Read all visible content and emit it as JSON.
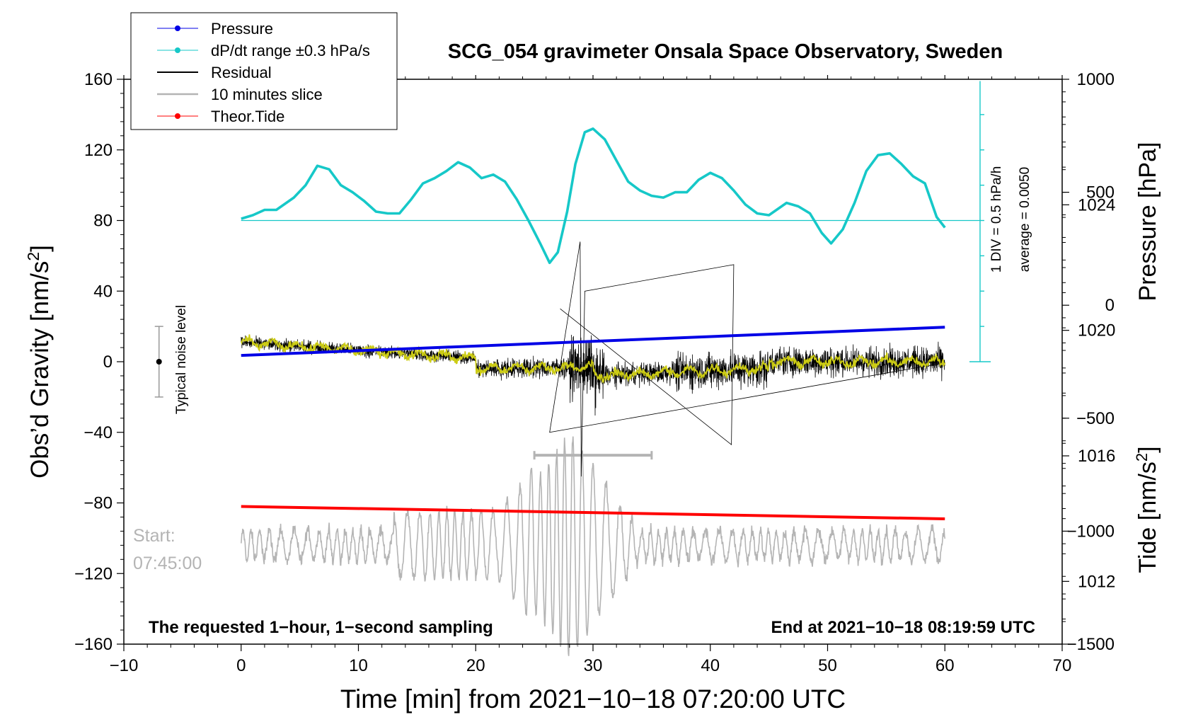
{
  "chart_data": {
    "type": "line",
    "title": "SCG_054 gravimeter Onsala Space Observatory, Sweden",
    "xlabel": "Time [min] from 2021−10−18 07:20:00 UTC",
    "ylabel_left": "Obs’d Gravity [nm/s²]",
    "ylabel_left_main": "Obs’d Gravity [nm/s",
    "ylabel_left_sup": "2",
    "ylabel_left_end": "]",
    "ylabel_right_pressure": "Pressure [hPa]",
    "ylabel_right_tide": "Tide [nm/s²]",
    "ylabel_right_tide_main": "Tide [nm/s",
    "ylabel_right_tide_sup": "2",
    "ylabel_right_tide_end": "]",
    "xlim": [
      -10,
      70
    ],
    "ylim": [
      -160,
      160
    ],
    "pressure_axis": {
      "range": [
        1010,
        1028
      ],
      "ticks": [
        1012,
        1016,
        1020,
        1024
      ],
      "tick_labels": [
        "1012",
        "1016",
        "1020",
        "1024"
      ]
    },
    "tide_axis": {
      "range": [
        -1500,
        1000
      ],
      "ticks": [
        -1500,
        -1000,
        -500,
        0,
        500,
        1000
      ],
      "tick_labels": [
        "−1500",
        "−1000",
        "−500",
        "0",
        "500",
        "1000"
      ]
    },
    "x_ticks": [
      -10,
      0,
      10,
      20,
      30,
      40,
      50,
      60,
      70
    ],
    "x_tick_labels": [
      "−10",
      "0",
      "10",
      "20",
      "30",
      "40",
      "50",
      "60",
      "70"
    ],
    "y_ticks": [
      -160,
      -120,
      -80,
      -40,
      0,
      40,
      80,
      120,
      160
    ],
    "y_tick_labels": [
      "−160",
      "−120",
      "−80",
      "−40",
      "0",
      "40",
      "80",
      "120",
      "160"
    ],
    "legend": {
      "placement": "top-left",
      "entries": [
        {
          "label": "Pressure",
          "color": "#0000e6",
          "marker": "dot"
        },
        {
          "label": "dP/dt range ±0.3 hPa/s",
          "color": "#16c8c8",
          "marker": "dot"
        },
        {
          "label": "Residual",
          "color": "#000000",
          "marker": "line"
        },
        {
          "label": "10 minutes slice",
          "color": "#b4b4b4",
          "marker": "line"
        },
        {
          "label": "Theor.Tide",
          "color": "#ff0000",
          "marker": "dot"
        }
      ]
    },
    "series": [
      {
        "name": "Pressure",
        "axis": "pressure",
        "color": "#0000e6",
        "x": [
          0,
          60
        ],
        "values": [
          1019.2,
          1020.1
        ]
      },
      {
        "name": "dP/dt",
        "axis": "left",
        "color": "#16c8c8",
        "x": [
          0,
          1,
          2,
          3,
          4.5,
          5.5,
          6.5,
          7.5,
          8.5,
          9.5,
          10.5,
          11.5,
          12.5,
          13.5,
          14.5,
          15.5,
          16.5,
          17.5,
          18.5,
          19.5,
          20.5,
          21.5,
          22.5,
          23.5,
          24.5,
          25.5,
          26.3,
          27,
          27.8,
          28.5,
          29.3,
          30,
          31,
          32,
          33,
          34,
          35,
          36,
          37,
          38,
          39,
          40,
          41,
          42,
          43,
          44,
          45,
          46.5,
          47.5,
          48.5,
          49.5,
          50.3,
          51.3,
          52.3,
          53.3,
          54.3,
          55.3,
          56.3,
          57.3,
          58.3,
          59.3,
          60
        ],
        "values": [
          81,
          83,
          86,
          86,
          93,
          100,
          111,
          109,
          100,
          96,
          91,
          85,
          84,
          84,
          92,
          101,
          104,
          108,
          113,
          110,
          104,
          106,
          102,
          92,
          80,
          67,
          56,
          62,
          85,
          112,
          130,
          132,
          126,
          114,
          102,
          97,
          94,
          93,
          96,
          96,
          103,
          107,
          104,
          97,
          89,
          84,
          83,
          90,
          88,
          84,
          73,
          67,
          75,
          90,
          108,
          117,
          118,
          112,
          105,
          101,
          82,
          76
        ]
      },
      {
        "name": "Residual",
        "axis": "left",
        "color": "#000000",
        "amplitude_min": -47,
        "amplitude_max": 68
      },
      {
        "name": "Residual smoothed",
        "axis": "left",
        "color": "#cccc14"
      },
      {
        "name": "10 minutes slice",
        "axis": "left",
        "color": "#b4b4b4",
        "baseline": -104,
        "slice_start_min": 25,
        "slice_end_min": 35
      },
      {
        "name": "Theor.Tide",
        "axis": "left",
        "color": "#ff0000",
        "x": [
          0,
          60
        ],
        "values": [
          -82,
          -89
        ]
      }
    ],
    "dpdt_reference_value": 80,
    "annotations": {
      "noise_label": "Typical noise level",
      "noise_level": [
        -20,
        20
      ],
      "start_label_line1": "Start:",
      "start_label_line2": "07:45:00",
      "bottom_left": "The requested 1−hour, 1−second sampling",
      "bottom_right": "End at 2021−10−18 08:19:59 UTC",
      "pressure_scale_line1": "1 DIV = 0.5 hPa/h",
      "pressure_scale_line2": "average = 0.0050"
    }
  }
}
